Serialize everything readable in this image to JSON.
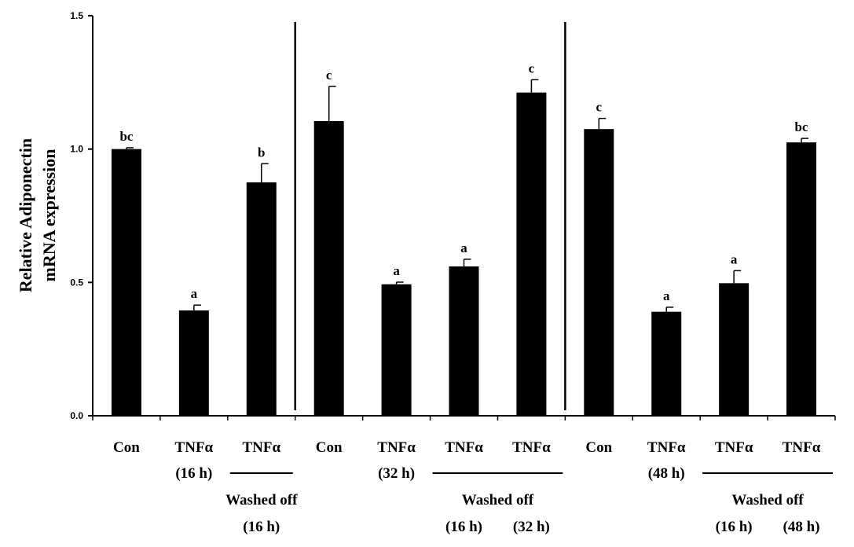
{
  "chart_data": {
    "type": "bar",
    "ylabel_lines": [
      "Relative Adiponectin",
      "mRNA expression"
    ],
    "ylim": [
      0,
      1.5
    ],
    "yticks": [
      "0.0",
      "0.5",
      "1.0",
      "1.5"
    ],
    "grid": false,
    "legend": "none",
    "color": "#000000",
    "bars": [
      {
        "label": "Con",
        "label2": "",
        "value": 1.0,
        "error": 0.005,
        "sig": "bc"
      },
      {
        "label": "TNFα",
        "label2": "(16 h)",
        "value": 0.395,
        "error": 0.02,
        "sig": "a"
      },
      {
        "label": "TNFα",
        "label2": "",
        "value": 0.875,
        "error": 0.07,
        "sig": "b"
      },
      {
        "label": "Con",
        "label2": "",
        "value": 1.105,
        "error": 0.13,
        "sig": "c"
      },
      {
        "label": "TNFα",
        "label2": "(32 h)",
        "value": 0.493,
        "error": 0.008,
        "sig": "a"
      },
      {
        "label": "TNFα",
        "label2": "",
        "value": 0.56,
        "error": 0.027,
        "sig": "a"
      },
      {
        "label": "TNFα",
        "label2": "",
        "value": 1.212,
        "error": 0.048,
        "sig": "c"
      },
      {
        "label": "Con",
        "label2": "",
        "value": 1.075,
        "error": 0.04,
        "sig": "c"
      },
      {
        "label": "TNFα",
        "label2": "(48 h)",
        "value": 0.39,
        "error": 0.017,
        "sig": "a"
      },
      {
        "label": "TNFα",
        "label2": "",
        "value": 0.497,
        "error": 0.047,
        "sig": "a"
      },
      {
        "label": "TNFα",
        "label2": "",
        "value": 1.025,
        "error": 0.015,
        "sig": "bc"
      }
    ],
    "panel_dividers_after": [
      2,
      6
    ],
    "washed_groups": [
      {
        "bars": [
          2,
          2
        ],
        "label": "Washed off",
        "sublabels": [
          {
            "bar": 2,
            "text": "(16 h)"
          }
        ]
      },
      {
        "bars": [
          5,
          6
        ],
        "label": "Washed off",
        "sublabels": [
          {
            "bar": 5,
            "text": "(16 h)"
          },
          {
            "bar": 6,
            "text": "(32 h)"
          }
        ]
      },
      {
        "bars": [
          9,
          10
        ],
        "label": "Washed off",
        "sublabels": [
          {
            "bar": 9,
            "text": "(16 h)"
          },
          {
            "bar": 10,
            "text": "(48 h)"
          }
        ]
      }
    ]
  }
}
